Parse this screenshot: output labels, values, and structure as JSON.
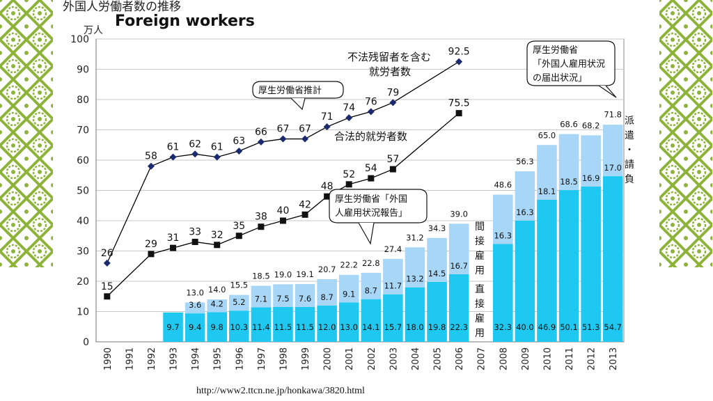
{
  "header": {
    "title_jp": "外国人労働者数の推移",
    "title_en": "Foreign workers"
  },
  "source_url": "http://www2.ttcn.ne.jp/honkawa/3820.html",
  "colors": {
    "accent_green": "#8db33a",
    "direct_bar": "#1ec8f0",
    "indirect_bar": "#a8d6f6",
    "line": "#000000",
    "grid": "#c7c7c7"
  },
  "chart_data": {
    "type": "bar+line",
    "unit_label": "万人",
    "ylim": [
      0,
      100
    ],
    "yticks": [
      0,
      10,
      20,
      30,
      40,
      50,
      60,
      70,
      80,
      90,
      100
    ],
    "grid": true,
    "years": [
      "1990",
      "1991",
      "1992",
      "1993",
      "1994",
      "1995",
      "1996",
      "1997",
      "1998",
      "1999",
      "2000",
      "2001",
      "2002",
      "2003",
      "2004",
      "2005",
      "2006",
      "2007",
      "2008",
      "2009",
      "2010",
      "2011",
      "2012",
      "2013"
    ],
    "lines": [
      {
        "name": "不法残留者を含む就労者数",
        "marker": "diamond",
        "points": [
          [
            "1990",
            26
          ],
          [
            "1992",
            58
          ],
          [
            "1993",
            61
          ],
          [
            "1994",
            62
          ],
          [
            "1995",
            61
          ],
          [
            "1996",
            63
          ],
          [
            "1997",
            66
          ],
          [
            "1998",
            67
          ],
          [
            "1999",
            67
          ],
          [
            "2000",
            71
          ],
          [
            "2001",
            74
          ],
          [
            "2002",
            76
          ],
          [
            "2003",
            79
          ],
          [
            "2006",
            92.5
          ]
        ],
        "labels": [
          "26",
          "58",
          "61",
          "62",
          "61",
          "63",
          "66",
          "67",
          "67",
          "71",
          "74",
          "76",
          "79",
          "92.5"
        ]
      },
      {
        "name": "合法的就労者数",
        "marker": "square",
        "points": [
          [
            "1990",
            15
          ],
          [
            "1992",
            29
          ],
          [
            "1993",
            31
          ],
          [
            "1994",
            33
          ],
          [
            "1995",
            32
          ],
          [
            "1996",
            35
          ],
          [
            "1997",
            38
          ],
          [
            "1998",
            40
          ],
          [
            "1999",
            42
          ],
          [
            "2000",
            48
          ],
          [
            "2001",
            52
          ],
          [
            "2002",
            54
          ],
          [
            "2003",
            57
          ],
          [
            "2006",
            75.5
          ]
        ],
        "labels": [
          "15",
          "29",
          "31",
          "33",
          "32",
          "35",
          "38",
          "40",
          "42",
          "48",
          "52",
          "54",
          "57",
          "75.5"
        ]
      }
    ],
    "bars": {
      "years": [
        "1993",
        "1994",
        "1995",
        "1996",
        "1997",
        "1998",
        "1999",
        "2000",
        "2001",
        "2002",
        "2003",
        "2004",
        "2005",
        "2006",
        "2008",
        "2009",
        "2010",
        "2011",
        "2012",
        "2013"
      ],
      "direct": [
        9.7,
        9.4,
        9.8,
        10.3,
        11.4,
        11.5,
        11.5,
        12.0,
        13.0,
        14.1,
        15.7,
        18.0,
        19.8,
        22.3,
        32.3,
        40.0,
        46.9,
        50.1,
        51.3,
        54.7
      ],
      "direct_labels": [
        "9.7",
        "9.4",
        "9.8",
        "10.3",
        "11.4",
        "11.5",
        "11.5",
        "12.0",
        "13.0",
        "14.1",
        "15.7",
        "18.0",
        "19.8",
        "22.3",
        "32.3",
        "40.0",
        "46.9",
        "50.1",
        "51.3",
        "54.7"
      ],
      "indirect": [
        null,
        3.6,
        4.2,
        5.2,
        7.1,
        7.5,
        7.6,
        8.7,
        9.1,
        8.7,
        11.7,
        13.2,
        14.5,
        16.7,
        16.3,
        16.3,
        18.1,
        18.5,
        16.9,
        17.0
      ],
      "indirect_labels": [
        "",
        "3.6",
        "4.2",
        "5.2",
        "7.1",
        "7.5",
        "7.6",
        "8.7",
        "9.1",
        "8.7",
        "11.7",
        "13.2",
        "14.5",
        "16.7",
        "16.3",
        "16.3",
        "18.1",
        "18.5",
        "16.9",
        "17.0"
      ],
      "totals": [
        9.7,
        13.0,
        14.0,
        15.5,
        18.5,
        19.0,
        19.1,
        20.7,
        22.2,
        22.8,
        27.4,
        31.2,
        34.3,
        39.0,
        48.6,
        56.3,
        65.0,
        68.6,
        68.2,
        71.8
      ],
      "total_labels": [
        "",
        "13.0",
        "14.0",
        "15.5",
        "18.5",
        "19.0",
        "19.1",
        "20.7",
        "22.2",
        "22.8",
        "27.4",
        "31.2",
        "34.3",
        "39.0",
        "48.6",
        "56.3",
        "65.0",
        "68.6",
        "68.2",
        "71.8"
      ]
    },
    "annotations": {
      "illegal_label_1": "不法残留者を含む",
      "illegal_label_2": "就労者数",
      "legal_label": "合法的就労者数",
      "callout_estimate": "厚生労働省推計",
      "callout_report_1": "厚生労働省「外国",
      "callout_report_2": "人雇用状況報告」",
      "callout_notify_1": "厚生労働省",
      "callout_notify_2": "「外国人雇用状況",
      "callout_notify_3": "の届出状況」",
      "indirect_vertical": "間接雇用",
      "direct_vertical": "直接雇用",
      "dispatch_vertical": "派遣・請負"
    }
  }
}
